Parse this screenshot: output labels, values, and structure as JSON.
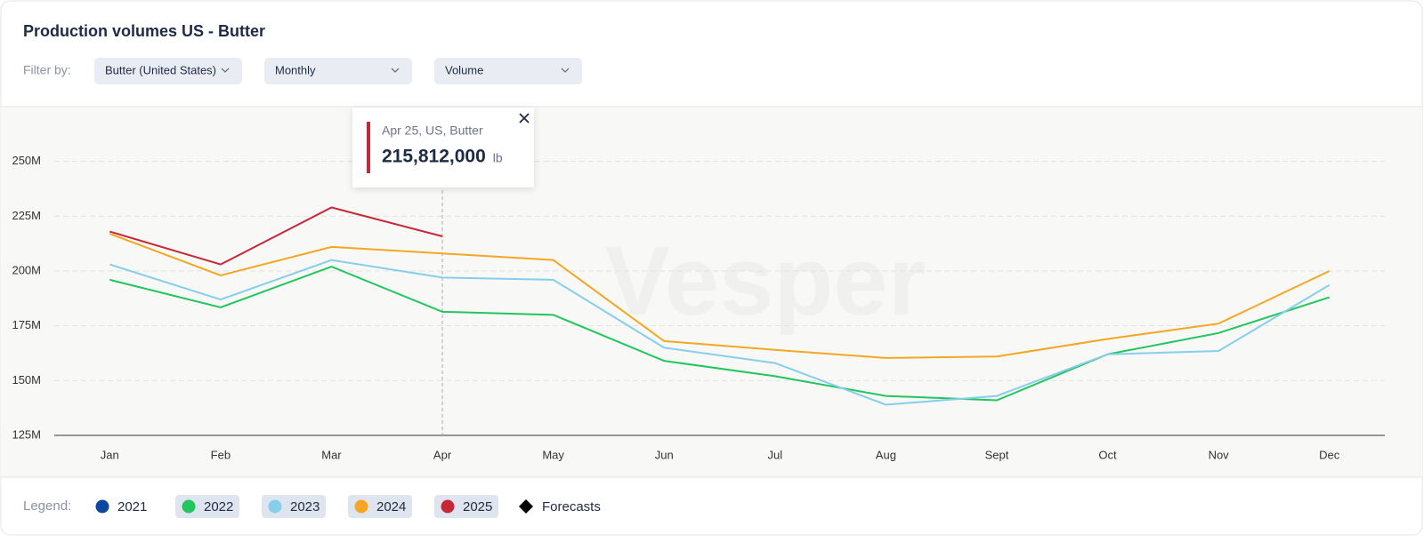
{
  "header": {
    "title": "Production volumes US - Butter",
    "filter_label": "Filter by:",
    "filters": [
      "Butter (United States)",
      "Monthly",
      "Volume"
    ]
  },
  "watermark": "Vesper",
  "legend": {
    "label": "Legend:",
    "forecasts": "Forecasts"
  },
  "chart_data": {
    "type": "line",
    "categories": [
      "Jan",
      "Feb",
      "Mar",
      "Apr",
      "May",
      "Jun",
      "Jul",
      "Aug",
      "Sept",
      "Oct",
      "Nov",
      "Dec"
    ],
    "series": [
      {
        "name": "2021",
        "color": "#0d47a1",
        "values": [
          null,
          null,
          null,
          null,
          null,
          null,
          null,
          null,
          null,
          null,
          null,
          null
        ]
      },
      {
        "name": "2022",
        "color": "#22c55e",
        "values": [
          196000000,
          183400000,
          202000000,
          181400000,
          180000000,
          159000000,
          152000000,
          143000000,
          141000000,
          162000000,
          171700000,
          188000000
        ]
      },
      {
        "name": "2023",
        "color": "#87ceeb",
        "values": [
          203000000,
          187000000,
          205000000,
          197000000,
          196000000,
          165000000,
          158000000,
          139000000,
          143000000,
          162000000,
          163500000,
          193600000
        ]
      },
      {
        "name": "2024",
        "color": "#f5a623",
        "values": [
          217000000,
          198000000,
          211000000,
          208000000,
          205000000,
          168000000,
          164000000,
          160300000,
          161000000,
          169000000,
          176000000,
          200000000
        ]
      },
      {
        "name": "2025",
        "color": "#c62838",
        "values": [
          218000000,
          203000000,
          229000000,
          215812000,
          null,
          null,
          null,
          null,
          null,
          null,
          null,
          null
        ],
        "value_labels": [
          null,
          null,
          null,
          "215,812,000",
          null,
          null,
          null,
          null,
          null,
          null,
          null,
          null
        ]
      }
    ],
    "ylim": [
      125000000,
      275000000
    ],
    "yticks": [
      {
        "value": 125000000,
        "label": "125M"
      },
      {
        "value": 150000000,
        "label": "150M"
      },
      {
        "value": 175000000,
        "label": "175M"
      },
      {
        "value": 200000000,
        "label": "200M"
      },
      {
        "value": 225000000,
        "label": "225M"
      },
      {
        "value": 250000000,
        "label": "250M"
      }
    ],
    "grid": true,
    "tooltip": {
      "title": "Apr 25, US, Butter",
      "series": 4,
      "index": 3,
      "unit": "lb"
    }
  }
}
